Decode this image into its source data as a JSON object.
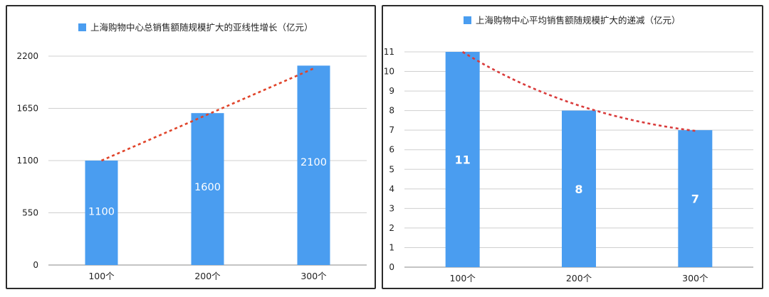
{
  "chart_data": [
    {
      "type": "bar",
      "title": "",
      "legend": "上海购物中心总销售额随规模扩大的亚线性增长（亿元）",
      "legend_position": "top",
      "categories": [
        "100个",
        "200个",
        "300个"
      ],
      "values": [
        1100,
        1600,
        2100
      ],
      "data_labels": [
        "1100",
        "1600",
        "2100"
      ],
      "ylim": [
        0,
        2200
      ],
      "yticks": [
        0,
        550,
        1100,
        1650,
        2200
      ],
      "ytick_labels": [
        "0",
        "550",
        "1100",
        "1650",
        "2200"
      ],
      "grid": true,
      "trendline": "linear",
      "colors": {
        "bar": "#4a9df0",
        "trend": "#e0442a",
        "grid": "#cfcfcf"
      }
    },
    {
      "type": "bar",
      "title": "",
      "legend": "上海购物中心平均销售额随规模扩大的递减（亿元）",
      "legend_position": "top",
      "categories": [
        "100个",
        "200个",
        "300个"
      ],
      "values": [
        11,
        8,
        7
      ],
      "data_labels": [
        "11",
        "8",
        "7"
      ],
      "ylim": [
        0,
        11
      ],
      "yticks": [
        0,
        1,
        2,
        3,
        4,
        5,
        6,
        7,
        8,
        9,
        10,
        11
      ],
      "ytick_labels": [
        "0",
        "1",
        "2",
        "3",
        "4",
        "5",
        "6",
        "7",
        "8",
        "9",
        "10",
        "11"
      ],
      "grid": true,
      "trendline": "curve",
      "colors": {
        "bar": "#4a9df0",
        "trend": "#d93b3b",
        "grid": "#cfcfcf"
      }
    }
  ]
}
